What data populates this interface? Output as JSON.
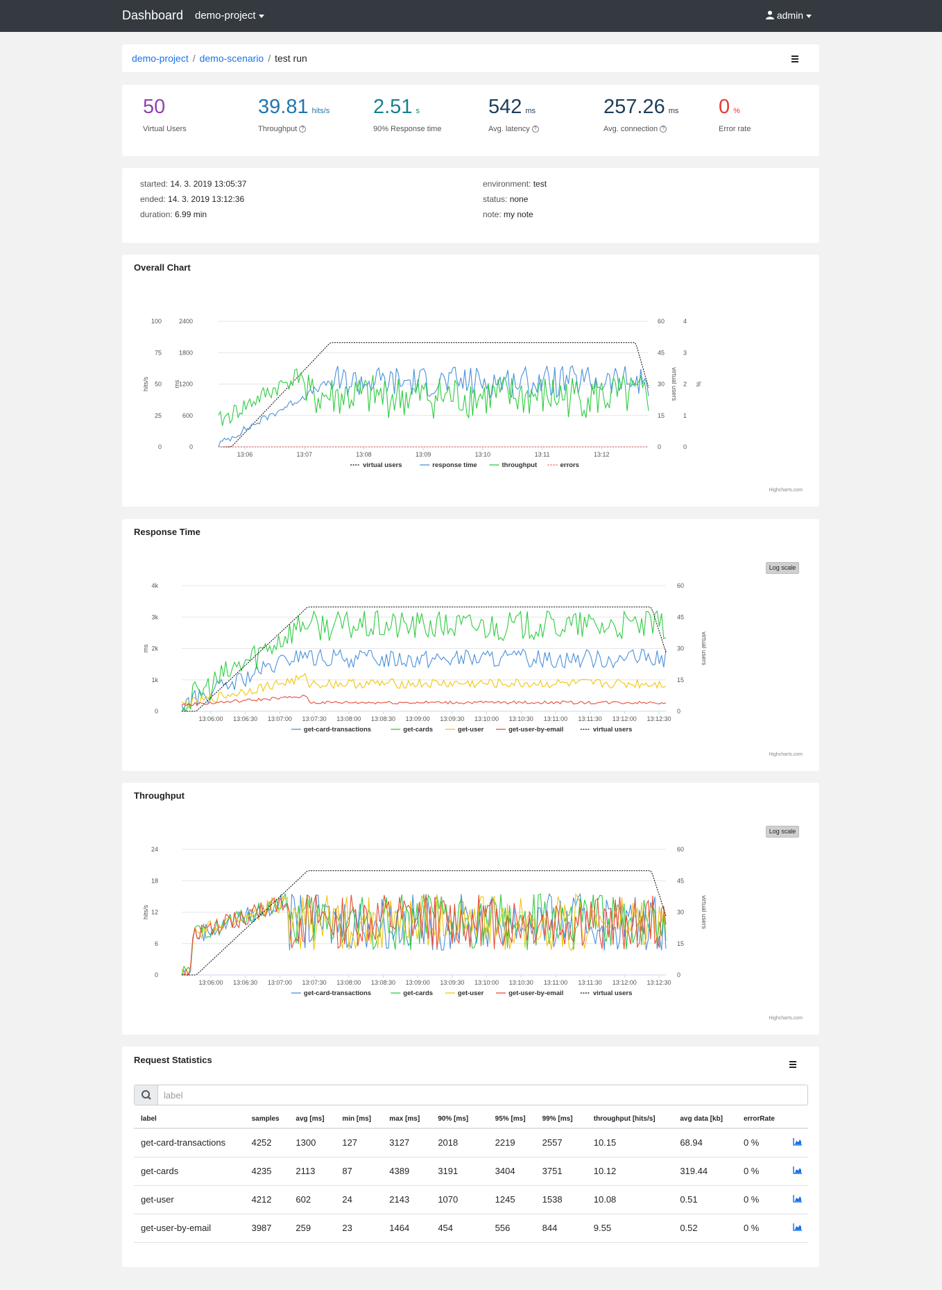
{
  "nav": {
    "brand": "Dashboard",
    "project": "demo-project",
    "user": "admin"
  },
  "breadcrumb": {
    "project": "demo-project",
    "scenario": "demo-scenario",
    "current": "test run",
    "sep": "/"
  },
  "kpis": [
    {
      "value": "50",
      "unit": "",
      "label": "Virtual Users",
      "color": "#8e44ad"
    },
    {
      "value": "39.81",
      "unit": "hits/s",
      "label": "Throughput",
      "color": "#2176ae"
    },
    {
      "value": "2.51",
      "unit": "s",
      "label": "90% Response time",
      "color": "#17808e"
    },
    {
      "value": "542",
      "unit": "ms",
      "label": "Avg. latency",
      "color": "#1c3d5a"
    },
    {
      "value": "257.26",
      "unit": "ms",
      "label": "Avg. connection",
      "color": "#1c3d5a"
    },
    {
      "value": "0",
      "unit": "%",
      "label": "Error rate",
      "color": "#e53935"
    }
  ],
  "info": {
    "started_label": "started:",
    "started": "14. 3. 2019 13:05:37",
    "ended_label": "ended:",
    "ended": "14. 3. 2019 13:12:36",
    "duration_label": "duration:",
    "duration": "6.99 min",
    "environment_label": "environment:",
    "environment": "test",
    "status_label": "status:",
    "status": "none",
    "note_label": "note:",
    "note": "my note"
  },
  "charts": {
    "overall_title": "Overall Chart",
    "response_title": "Response Time",
    "throughput_title": "Throughput",
    "log_scale": "Log scale",
    "credits": "Highcharts.com"
  },
  "chart_data": [
    {
      "type": "line",
      "title": "Overall Chart",
      "x_ticks": [
        "13:06",
        "13:07",
        "13:08",
        "13:09",
        "13:10",
        "13:11",
        "13:12"
      ],
      "axes": [
        {
          "label": "hits/s",
          "ticks": [
            "0",
            "25",
            "50",
            "75",
            "100"
          ]
        },
        {
          "label": "ms",
          "ticks": [
            "0",
            "600",
            "1200",
            "1800",
            "2400"
          ]
        },
        {
          "label": "virtual users",
          "ticks": [
            "0",
            "15",
            "30",
            "45",
            "60"
          ]
        },
        {
          "label": "%",
          "ticks": [
            "0",
            "1",
            "2",
            "3",
            "4"
          ]
        }
      ],
      "series": [
        {
          "name": "virtual users",
          "color": "#000000"
        },
        {
          "name": "response time",
          "color": "#4a90d9"
        },
        {
          "name": "throughput",
          "color": "#2ecc40"
        },
        {
          "name": "errors",
          "color": "#e74c3c"
        }
      ]
    },
    {
      "type": "line",
      "title": "Response Time",
      "x_ticks": [
        "13:06:00",
        "13:06:30",
        "13:07:00",
        "13:07:30",
        "13:08:00",
        "13:08:30",
        "13:09:00",
        "13:09:30",
        "13:10:00",
        "13:10:30",
        "13:11:00",
        "13:11:30",
        "13:12:00",
        "13:12:30"
      ],
      "axes": [
        {
          "label": "ms",
          "ticks": [
            "0",
            "1k",
            "2k",
            "3k",
            "4k"
          ]
        },
        {
          "label": "virtual users",
          "ticks": [
            "0",
            "15",
            "30",
            "45",
            "60"
          ]
        }
      ],
      "series": [
        {
          "name": "get-card-transactions",
          "color": "#4a90d9"
        },
        {
          "name": "get-cards",
          "color": "#2ecc40"
        },
        {
          "name": "get-user",
          "color": "#f1c40f"
        },
        {
          "name": "get-user-by-email",
          "color": "#e74c3c"
        },
        {
          "name": "virtual users",
          "color": "#000000"
        }
      ]
    },
    {
      "type": "line",
      "title": "Throughput",
      "x_ticks": [
        "13:06:00",
        "13:06:30",
        "13:07:00",
        "13:07:30",
        "13:08:00",
        "13:08:30",
        "13:09:00",
        "13:09:30",
        "13:10:00",
        "13:10:30",
        "13:11:00",
        "13:11:30",
        "13:12:00",
        "13:12:30"
      ],
      "axes": [
        {
          "label": "hits/s",
          "ticks": [
            "0",
            "6",
            "12",
            "18",
            "24"
          ]
        },
        {
          "label": "virtual users",
          "ticks": [
            "0",
            "15",
            "30",
            "45",
            "60"
          ]
        }
      ],
      "series": [
        {
          "name": "get-card-transactions",
          "color": "#4a90d9"
        },
        {
          "name": "get-cards",
          "color": "#2ecc40"
        },
        {
          "name": "get-user",
          "color": "#f1c40f"
        },
        {
          "name": "get-user-by-email",
          "color": "#e74c3c"
        },
        {
          "name": "virtual users",
          "color": "#000000"
        }
      ]
    }
  ],
  "stats": {
    "title": "Request Statistics",
    "search_placeholder": "label",
    "headers": [
      "label",
      "samples",
      "avg [ms]",
      "min [ms]",
      "max [ms]",
      "90% [ms]",
      "95% [ms]",
      "99% [ms]",
      "throughput [hits/s]",
      "avg data [kb]",
      "errorRate"
    ],
    "rows": [
      [
        "get-card-transactions",
        "4252",
        "1300",
        "127",
        "3127",
        "2018",
        "2219",
        "2557",
        "10.15",
        "68.94",
        "0 %"
      ],
      [
        "get-cards",
        "4235",
        "2113",
        "87",
        "4389",
        "3191",
        "3404",
        "3751",
        "10.12",
        "319.44",
        "0 %"
      ],
      [
        "get-user",
        "4212",
        "602",
        "24",
        "2143",
        "1070",
        "1245",
        "1538",
        "10.08",
        "0.51",
        "0 %"
      ],
      [
        "get-user-by-email",
        "3987",
        "259",
        "23",
        "1464",
        "454",
        "556",
        "844",
        "9.55",
        "0.52",
        "0 %"
      ]
    ]
  }
}
